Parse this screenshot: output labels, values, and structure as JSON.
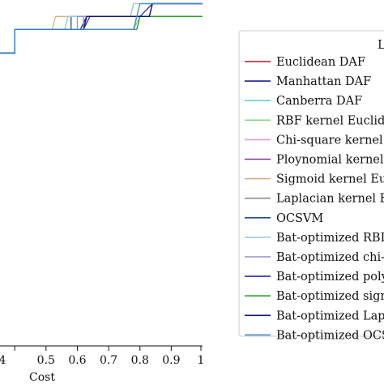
{
  "chart_data": {
    "type": "line",
    "xlabel": "Cost",
    "x_ticks": [
      "4",
      "0.5",
      "0.6",
      "0.7",
      "0.8",
      "0.9",
      "1"
    ],
    "legend_title_fragment": "L",
    "legend_placement": "right",
    "series": [
      {
        "name": "Euclidean DAF",
        "color": "#c8102e",
        "points": [
          [
            0.34,
            0.9
          ],
          [
            0.4,
            0.9
          ],
          [
            0.4,
            0.965
          ],
          [
            0.78,
            0.965
          ],
          [
            0.79,
            1.0
          ],
          [
            1.0,
            1.0
          ]
        ]
      },
      {
        "name": "Manhattan DAF",
        "color": "#1f1f8f",
        "points": [
          [
            0.34,
            0.9
          ],
          [
            0.4,
            0.9
          ],
          [
            0.4,
            0.965
          ],
          [
            0.61,
            0.965
          ],
          [
            0.63,
            1.0
          ],
          [
            1.0,
            1.0
          ]
        ]
      },
      {
        "name": "Canberra DAF",
        "color": "#5fd3c4",
        "points": [
          [
            0.34,
            0.9
          ],
          [
            0.4,
            0.9
          ],
          [
            0.4,
            0.965
          ],
          [
            0.56,
            0.965
          ],
          [
            0.57,
            1.0
          ],
          [
            1.0,
            1.0
          ]
        ]
      },
      {
        "name": "RBF kernel Euclid",
        "color": "#7fd98a",
        "points": [
          [
            0.34,
            0.9
          ],
          [
            0.4,
            0.9
          ],
          [
            0.4,
            0.965
          ],
          [
            0.78,
            0.965
          ],
          [
            0.8,
            1.0
          ],
          [
            1.0,
            1.0
          ]
        ]
      },
      {
        "name": "Chi-square kernel ]",
        "color": "#e89ad6",
        "points": [
          [
            0.34,
            0.9
          ],
          [
            0.4,
            0.9
          ],
          [
            0.4,
            0.965
          ],
          [
            0.79,
            0.965
          ],
          [
            0.8,
            1.0
          ],
          [
            1.0,
            1.0
          ]
        ]
      },
      {
        "name": "Ploynomial kernel",
        "color": "#8e2bb0",
        "points": [
          [
            0.34,
            0.9
          ],
          [
            0.4,
            0.9
          ],
          [
            0.4,
            0.965
          ],
          [
            0.62,
            0.965
          ],
          [
            0.63,
            1.0
          ],
          [
            1.0,
            1.0
          ]
        ]
      },
      {
        "name": "Sigmoid kernel Eu",
        "color": "#d8b07a",
        "points": [
          [
            0.34,
            0.9
          ],
          [
            0.4,
            0.9
          ],
          [
            0.4,
            0.965
          ],
          [
            0.52,
            0.965
          ],
          [
            0.53,
            1.0
          ],
          [
            0.77,
            1.0
          ],
          [
            0.78,
            1.035
          ],
          [
            1.0,
            1.035
          ]
        ]
      },
      {
        "name": "Laplacian kernel E",
        "color": "#8c8c8c",
        "points": [
          [
            0.34,
            0.9
          ],
          [
            0.4,
            0.9
          ],
          [
            0.4,
            0.965
          ],
          [
            0.62,
            0.965
          ],
          [
            0.62,
            1.0
          ],
          [
            1.0,
            1.0
          ]
        ]
      },
      {
        "name": "OCSVM",
        "color": "#1d4e89",
        "points": [
          [
            0.34,
            0.9
          ],
          [
            0.4,
            0.9
          ],
          [
            0.4,
            0.965
          ],
          [
            0.58,
            0.965
          ],
          [
            0.58,
            1.0
          ],
          [
            0.83,
            1.0
          ],
          [
            0.84,
            1.035
          ],
          [
            1.0,
            1.035
          ]
        ]
      },
      {
        "name": "Bat-optimized RBI",
        "color": "#9ecae1",
        "points": [
          [
            0.34,
            0.9
          ],
          [
            0.4,
            0.9
          ],
          [
            0.4,
            0.965
          ],
          [
            0.56,
            0.965
          ],
          [
            0.57,
            1.0
          ],
          [
            0.77,
            1.0
          ],
          [
            0.78,
            1.035
          ],
          [
            1.0,
            1.035
          ]
        ]
      },
      {
        "name": "Bat-optimized chi-",
        "color": "#9a8fc9",
        "points": [
          [
            0.34,
            0.9
          ],
          [
            0.4,
            0.9
          ],
          [
            0.4,
            0.965
          ],
          [
            0.6,
            0.965
          ],
          [
            0.6,
            1.0
          ],
          [
            1.0,
            1.0
          ]
        ]
      },
      {
        "name": "Bat-optimized poly",
        "color": "#2b2bb0",
        "points": [
          [
            0.34,
            0.9
          ],
          [
            0.4,
            0.9
          ],
          [
            0.4,
            0.965
          ],
          [
            0.62,
            0.965
          ],
          [
            0.64,
            1.0
          ],
          [
            0.8,
            1.0
          ],
          [
            0.84,
            1.035
          ],
          [
            1.0,
            1.035
          ]
        ]
      },
      {
        "name": "Bat-optimized sign",
        "color": "#2ca02c",
        "points": [
          [
            0.34,
            0.9
          ],
          [
            0.4,
            0.9
          ],
          [
            0.4,
            0.965
          ],
          [
            0.79,
            0.965
          ],
          [
            0.8,
            1.0
          ],
          [
            1.0,
            1.0
          ]
        ]
      },
      {
        "name": "Bat-optimized Lap",
        "color": "#14147a",
        "points": [
          [
            0.34,
            0.9
          ],
          [
            0.4,
            0.9
          ],
          [
            0.4,
            0.965
          ],
          [
            0.62,
            0.965
          ],
          [
            0.63,
            1.0
          ],
          [
            0.83,
            1.0
          ],
          [
            0.84,
            1.035
          ],
          [
            1.0,
            1.035
          ]
        ]
      },
      {
        "name": "Bat-optimized OCS",
        "color": "#3a8fd6",
        "points": [
          [
            0.34,
            0.9
          ],
          [
            0.4,
            0.9
          ],
          [
            0.4,
            0.965
          ],
          [
            0.78,
            0.965
          ],
          [
            0.8,
            1.035
          ],
          [
            1.0,
            1.035
          ]
        ]
      }
    ]
  }
}
